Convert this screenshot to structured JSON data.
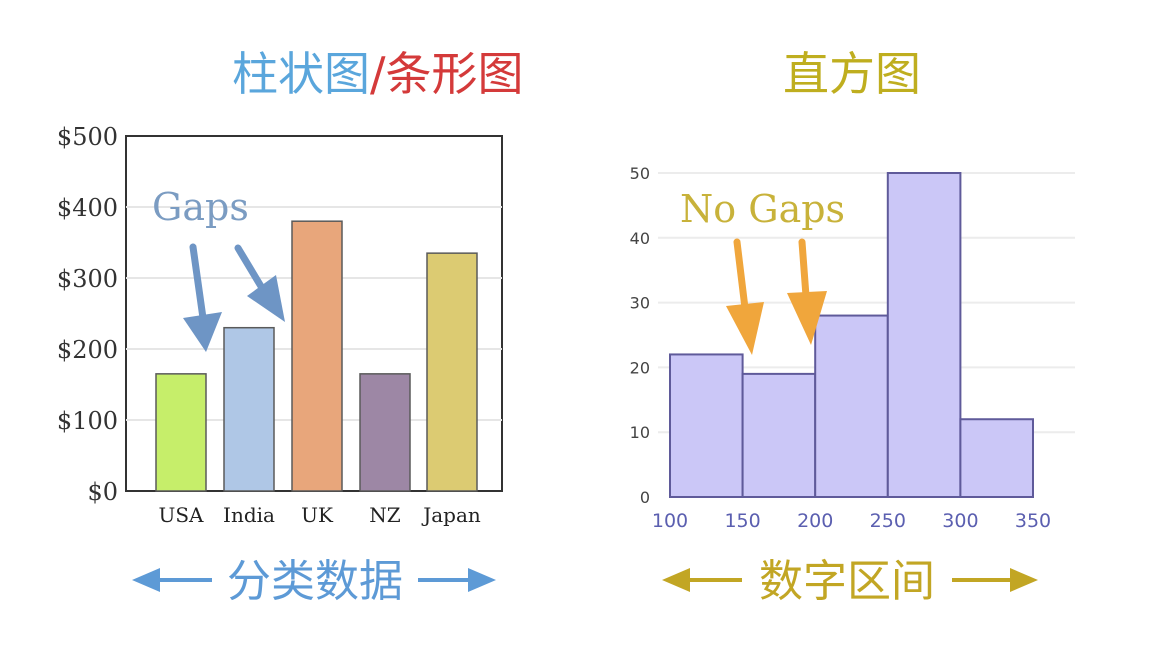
{
  "titles": {
    "left_part1": "柱状图",
    "left_sep": "/",
    "left_part2": "条形图",
    "right": "直方图"
  },
  "annotations": {
    "left_gaps": "Gaps",
    "right_no_gaps": "No Gaps"
  },
  "captions": {
    "left": "分类数据",
    "right": "数字区间"
  },
  "colors": {
    "left_title_blue": "#5aa6dc",
    "left_title_red": "#d43a3a",
    "right_title": "#bfae1f",
    "gaps_text": "#7b9cc2",
    "gaps_arrow": "#6e95c5",
    "no_gaps_text": "#c8b23a",
    "no_gaps_arrow": "#f0a63c",
    "left_caption": "#5d9ad6",
    "right_caption": "#c2a624",
    "hist_fill": "#cbc7f7",
    "hist_stroke": "#5f5a9a"
  },
  "chart_data": [
    {
      "type": "bar",
      "categories": [
        "USA",
        "India",
        "UK",
        "NZ",
        "Japan"
      ],
      "values": [
        165,
        230,
        380,
        165,
        335
      ],
      "bar_colors": [
        "#c6ee6a",
        "#afc7e6",
        "#e8a67b",
        "#9d87a5",
        "#dccb72"
      ],
      "yticks": [
        "$0",
        "$100",
        "$200",
        "$300",
        "$400",
        "$500"
      ],
      "ylim": [
        0,
        500
      ],
      "grid": true,
      "title": "柱状图/条形图"
    },
    {
      "type": "bar",
      "subtype": "histogram",
      "bin_edges": [
        100,
        150,
        200,
        250,
        300,
        350
      ],
      "values": [
        22,
        19,
        28,
        50,
        12
      ],
      "xticks": [
        "100",
        "150",
        "200",
        "250",
        "300",
        "350"
      ],
      "yticks": [
        "0",
        "10",
        "20",
        "30",
        "40",
        "50"
      ],
      "ylim": [
        0,
        50
      ],
      "grid": true,
      "title": "直方图"
    }
  ]
}
